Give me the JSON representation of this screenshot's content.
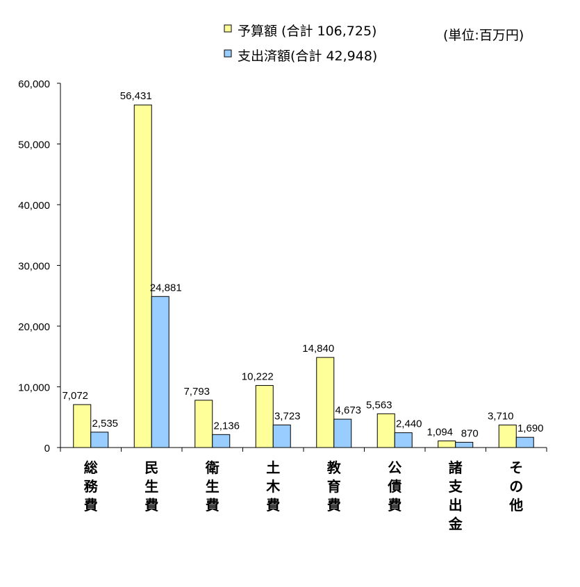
{
  "unit_label": "(単位:百万円)",
  "colors": {
    "budget": "#FFFF99",
    "spent": "#99CCFF",
    "stroke": "#000000"
  },
  "chart_data": {
    "type": "bar",
    "categories": [
      "総務費",
      "民生費",
      "衛生費",
      "土木費",
      "教育費",
      "公債費",
      "諸支出金",
      "その他"
    ],
    "series": [
      {
        "name": "予算額 (合計 106,725)",
        "values": [
          7072,
          56431,
          7793,
          10222,
          14840,
          5563,
          1094,
          3710
        ]
      },
      {
        "name": "支出済額(合計 42,948)",
        "values": [
          2535,
          24881,
          2136,
          3723,
          4673,
          2440,
          870,
          1690
        ]
      }
    ],
    "value_labels": [
      [
        "7,072",
        "56,431",
        "7,793",
        "10,222",
        "14,840",
        "5,563",
        "1,094",
        "3,710"
      ],
      [
        "2,535",
        "24,881",
        "2,136",
        "3,723",
        "4,673",
        "2,440",
        "870",
        "1,690"
      ]
    ],
    "y_ticks": [
      0,
      10000,
      20000,
      30000,
      40000,
      50000,
      60000
    ],
    "y_tick_labels": [
      "0",
      "10,000",
      "20,000",
      "30,000",
      "40,000",
      "50,000",
      "60,000"
    ],
    "ylim": [
      0,
      60000
    ],
    "grid": false,
    "legend_position": "top-center"
  }
}
